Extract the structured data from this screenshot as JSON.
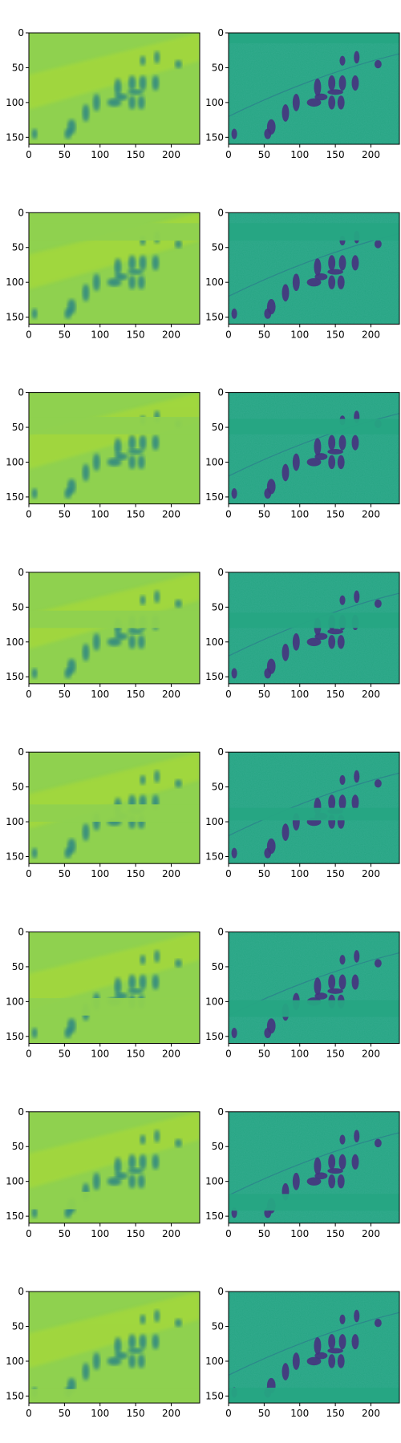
{
  "chart_data": {
    "type": "heatmap",
    "layout": "8 rows × 2 columns of image panels",
    "colormap": "viridis",
    "grid": false,
    "xlim": [
      0,
      240
    ],
    "ylim": [
      160,
      0
    ],
    "x_ticks": [
      0,
      50,
      100,
      150,
      200
    ],
    "y_ticks": [
      0,
      50,
      100,
      150
    ],
    "x_tick_labels": [
      "0",
      "50",
      "100",
      "150",
      "200"
    ],
    "y_tick_labels": [
      "0",
      "50",
      "100",
      "150"
    ],
    "panels": [
      {
        "row": 1,
        "left": {
          "content": "smoothed yellow-green map",
          "masked_band_y": null
        },
        "right": {
          "content": "detailed teal map",
          "masked_band_y": [
            0,
            15
          ]
        }
      },
      {
        "row": 2,
        "left": {
          "content": "smoothed yellow-green map",
          "masked_band_y": [
            15,
            40
          ]
        },
        "right": {
          "content": "detailed teal map",
          "masked_band_y": [
            15,
            40
          ]
        }
      },
      {
        "row": 3,
        "left": {
          "content": "smoothed yellow-green map",
          "masked_band_y": [
            35,
            60
          ]
        },
        "right": {
          "content": "detailed teal map",
          "masked_band_y": [
            38,
            60
          ]
        }
      },
      {
        "row": 4,
        "left": {
          "content": "smoothed yellow-green map",
          "masked_band_y": [
            55,
            80
          ]
        },
        "right": {
          "content": "detailed teal map",
          "masked_band_y": [
            58,
            80
          ]
        }
      },
      {
        "row": 5,
        "left": {
          "content": "smoothed yellow-green map",
          "masked_band_y": [
            75,
            100
          ]
        },
        "right": {
          "content": "detailed teal map",
          "masked_band_y": [
            80,
            98
          ]
        }
      },
      {
        "row": 6,
        "left": {
          "content": "smoothed yellow-green map",
          "masked_band_y": [
            95,
            120
          ]
        },
        "right": {
          "content": "detailed teal map",
          "masked_band_y": [
            98,
            122
          ]
        }
      },
      {
        "row": 7,
        "left": {
          "content": "smoothed yellow-green map",
          "masked_band_y": [
            115,
            140
          ]
        },
        "right": {
          "content": "detailed teal map",
          "masked_band_y": [
            118,
            142
          ]
        }
      },
      {
        "row": 8,
        "left": {
          "content": "smoothed yellow-green map",
          "masked_band_y": [
            140,
            160
          ]
        },
        "right": {
          "content": "detailed teal map",
          "masked_band_y": [
            138,
            160
          ]
        }
      }
    ],
    "blobs": [
      [
        150,
        85,
        22,
        8
      ],
      [
        130,
        92,
        18,
        10
      ],
      [
        120,
        100,
        20,
        12
      ],
      [
        125,
        78,
        10,
        25
      ],
      [
        145,
        72,
        10,
        22
      ],
      [
        160,
        72,
        10,
        22
      ],
      [
        178,
        72,
        10,
        22
      ],
      [
        145,
        100,
        10,
        20
      ],
      [
        158,
        100,
        10,
        20
      ],
      [
        95,
        100,
        10,
        25
      ],
      [
        80,
        115,
        10,
        25
      ],
      [
        60,
        135,
        12,
        22
      ],
      [
        55,
        145,
        10,
        15
      ],
      [
        8,
        145,
        8,
        15
      ],
      [
        180,
        35,
        8,
        18
      ],
      [
        160,
        40,
        8,
        14
      ],
      [
        210,
        45,
        10,
        12
      ]
    ]
  },
  "colors": {
    "viridis": [
      "#440154",
      "#3b528b",
      "#21918c",
      "#5ec962",
      "#fde725"
    ],
    "left_background": "#8fd14f",
    "right_background": "#26a583",
    "left_blob": "#1f7a8c",
    "right_blob": "#46327e",
    "axis": "#000000"
  }
}
